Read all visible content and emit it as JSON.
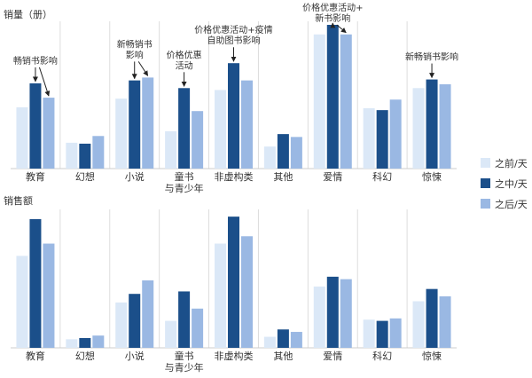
{
  "colors": {
    "before": "#dbe8f7",
    "during": "#1b4f8a",
    "after": "#9ab8e3",
    "grid": "#dddddd",
    "text": "#333333"
  },
  "chart_data": [
    {
      "type": "bar",
      "title": "销量（册）",
      "categories": [
        "教育",
        "幻想",
        "小说",
        "童书\n与青少年",
        "非虚构类",
        "其他",
        "爱情",
        "科幻",
        "惊悚"
      ],
      "series": [
        {
          "name": "之前/天",
          "values": [
            64,
            27,
            73,
            39,
            82,
            23,
            140,
            63,
            84
          ]
        },
        {
          "name": "之中/天",
          "values": [
            89,
            26,
            92,
            84,
            110,
            36,
            150,
            61,
            93
          ]
        },
        {
          "name": "之后/天",
          "values": [
            74,
            34,
            95,
            60,
            92,
            33,
            140,
            72,
            88
          ]
        }
      ],
      "ylim": [
        0,
        150
      ],
      "grid": false,
      "annotations": [
        {
          "text": "畅销书影响",
          "categories": [
            0
          ],
          "series": [
            1,
            2
          ]
        },
        {
          "text": "新畅销书\n影响",
          "categories": [
            2
          ],
          "series": [
            1,
            2
          ]
        },
        {
          "text": "价格优惠\n活动",
          "categories": [
            3
          ],
          "series": [
            1
          ]
        },
        {
          "text": "价格优惠活动+疫情\n自助图书影响",
          "categories": [
            4
          ],
          "series": [
            1
          ]
        },
        {
          "text": "价格优惠活动+\n新书影响",
          "categories": [
            6
          ],
          "series": [
            1,
            2
          ]
        },
        {
          "text": "新畅销书影响",
          "categories": [
            8
          ],
          "series": [
            1
          ]
        }
      ]
    },
    {
      "type": "bar",
      "title": "销售额",
      "categories": [
        "教育",
        "幻想",
        "小说",
        "童书\n与青少年",
        "非虚构类",
        "其他",
        "爱情",
        "科幻",
        "惊悚"
      ],
      "series": [
        {
          "name": "之前/天",
          "values": [
            75,
            7,
            37,
            22,
            85,
            9,
            50,
            23,
            38
          ]
        },
        {
          "name": "之中/天",
          "values": [
            105,
            8,
            44,
            46,
            107,
            15,
            58,
            22,
            48
          ]
        },
        {
          "name": "之后/天",
          "values": [
            85,
            10,
            55,
            32,
            91,
            13,
            56,
            24,
            42
          ]
        }
      ],
      "ylim": [
        0,
        110
      ],
      "grid": false
    }
  ],
  "legend": {
    "placement": "right",
    "items": [
      {
        "label": "之前/天",
        "color": "#dbe8f7"
      },
      {
        "label": "之中/天",
        "color": "#1b4f8a"
      },
      {
        "label": "之后/天",
        "color": "#9ab8e3"
      }
    ]
  }
}
